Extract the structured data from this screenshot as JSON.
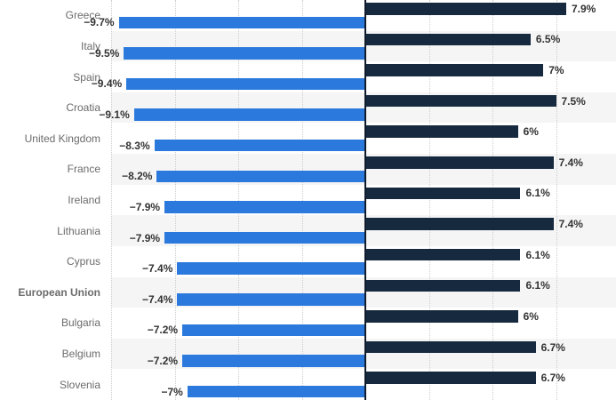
{
  "chart_data": {
    "type": "bar",
    "orientation": "horizontal",
    "title": "",
    "legend": "none",
    "categories": [
      "Greece",
      "Italy",
      "Spain",
      "Croatia",
      "United Kingdom",
      "France",
      "Ireland",
      "Lithuania",
      "Cyprus",
      "European Union",
      "Bulgaria",
      "Belgium",
      "Slovenia"
    ],
    "bold_categories": [
      "European Union"
    ],
    "series": [
      {
        "name": "navy",
        "color": "#16293e",
        "direction": "right",
        "values": [
          7.9,
          6.5,
          7,
          7.5,
          6,
          7.4,
          6.1,
          7.4,
          6.1,
          6.1,
          6,
          6.7,
          6.7
        ],
        "data_labels": [
          "7.9%",
          "6.5%",
          "7%",
          "7.5%",
          "6%",
          "7.4%",
          "6.1%",
          "7.4%",
          "6.1%",
          "6.1%",
          "6%",
          "6.7%",
          "6.7%"
        ]
      },
      {
        "name": "blue",
        "color": "#2b79dd",
        "direction": "left",
        "values": [
          -9.7,
          -9.5,
          -9.4,
          -9.1,
          -8.3,
          -8.2,
          -7.9,
          -7.9,
          -7.4,
          -7.4,
          -7.2,
          -7.2,
          -7
        ],
        "data_labels": [
          "−9.7%",
          "−9.5%",
          "−9.4%",
          "−9.1%",
          "−8.3%",
          "−8.2%",
          "−7.9%",
          "−7.9%",
          "−7.4%",
          "−7.4%",
          "−7.2%",
          "−7.2%",
          "−7%"
        ]
      }
    ],
    "xlim": [
      -10,
      10
    ],
    "gridline_step": 2.5,
    "grid_style": "dotted",
    "zero_axis": true,
    "alternating_plot_bands": true
  },
  "colors": {
    "navy_bar": "#16293e",
    "blue_bar": "#2b79dd",
    "band": "#f5f5f5",
    "gridline": "#cdcdcd",
    "axis_line": "#101c2c",
    "category_label": "#6b6b6b",
    "value_label": "#333333",
    "background": "#ffffff"
  }
}
